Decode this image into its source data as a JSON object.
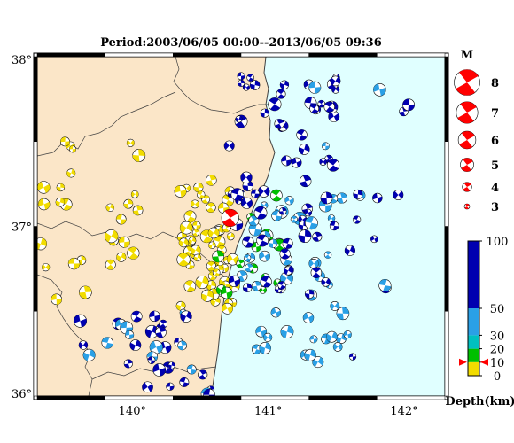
{
  "title": "Period:2003/06/05 00:00--2013/06/05 09:36",
  "lat_labels": [
    {
      "text": "38°",
      "lat": 38
    },
    {
      "text": "37°",
      "lat": 37
    },
    {
      "text": "36°",
      "lat": 36
    }
  ],
  "lon_labels": [
    {
      "text": "140°",
      "lon": 140
    },
    {
      "text": "141°",
      "lon": 141
    },
    {
      "text": "142°",
      "lon": 142
    }
  ],
  "magnitude_legend": {
    "title": "M",
    "items": [
      "8",
      "7",
      "6",
      "5",
      "4",
      "3"
    ],
    "values": [
      8,
      7,
      6,
      5,
      4,
      3
    ]
  },
  "depth_colorbar": {
    "labels": [
      "100",
      "50",
      "30",
      "20",
      "10",
      "0"
    ],
    "values": [
      100,
      50,
      30,
      20,
      10,
      0
    ],
    "unit_label": "Depth(km)",
    "marker_depth": 10,
    "colors": {
      "0-10": "#f2dc00",
      "10-20": "#00c000",
      "20-30": "#00c0c0",
      "30-50": "#2aa0e6",
      "50-100": "#0000b0"
    }
  },
  "colors": {
    "land": "#fbe6c8",
    "sea": "#e0ffff",
    "shallow": "#f2dc00",
    "green": "#00c000",
    "cyan": "#00c0c0",
    "mid": "#2aa0e6",
    "deep": "#0000b0",
    "target": "#ff0000"
  },
  "events": {
    "mainshock": {
      "lon": 140.72,
      "lat": 37.05,
      "depth": 7,
      "mag": 5.5
    },
    "clusters": [
      {
        "name": "coastal-shallow",
        "lon": [
          140.35,
          140.75
        ],
        "lat": [
          36.5,
          37.3
        ],
        "depth": [
          0,
          10
        ],
        "count": 60
      },
      {
        "name": "nw-shallow",
        "lon": [
          139.3,
          140.05
        ],
        "lat": [
          36.5,
          37.6
        ],
        "depth": [
          0,
          10
        ],
        "count": 28
      },
      {
        "name": "green",
        "lon": [
          140.6,
          141.1
        ],
        "lat": [
          36.5,
          37.2
        ],
        "depth": [
          10,
          20
        ],
        "count": 14
      },
      {
        "name": "mid",
        "lon": [
          140.8,
          141.6
        ],
        "lat": [
          36.2,
          37.2
        ],
        "depth": [
          30,
          50
        ],
        "count": 45
      },
      {
        "name": "deep-coast",
        "lon": [
          140.7,
          141.5
        ],
        "lat": [
          36.6,
          37.9
        ],
        "depth": [
          50,
          100
        ],
        "count": 70
      },
      {
        "name": "south-cluster",
        "lon": [
          139.6,
          140.6
        ],
        "lat": [
          36.0,
          36.5
        ],
        "depth": [
          30,
          100
        ],
        "count": 35
      },
      {
        "name": "offshore",
        "lon": [
          141.3,
          142.1
        ],
        "lat": [
          36.2,
          37.9
        ],
        "depth": [
          30,
          100
        ],
        "count": 18
      }
    ]
  }
}
